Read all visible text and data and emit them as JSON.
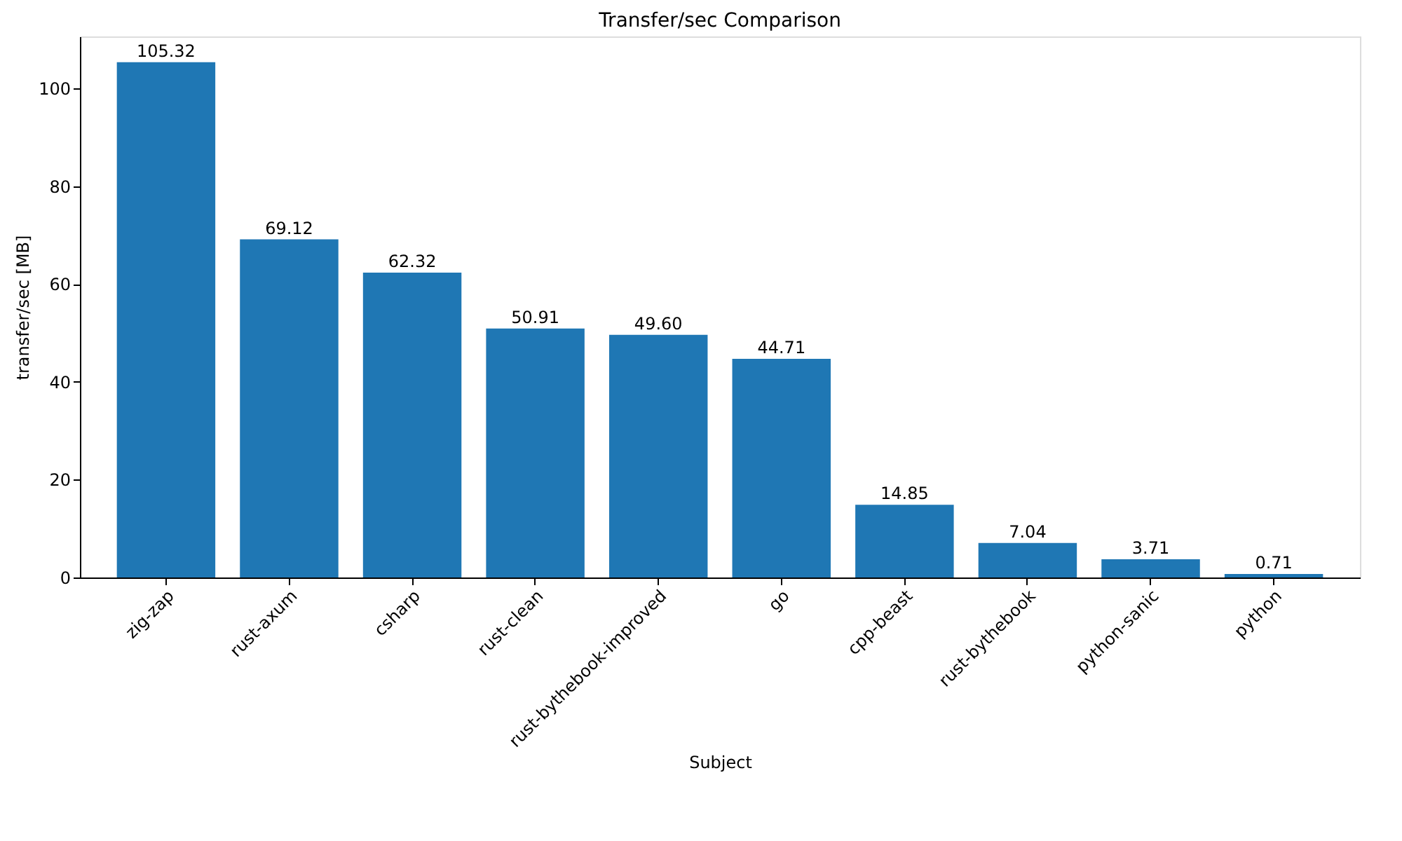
{
  "chart_data": {
    "type": "bar",
    "title": "Transfer/sec Comparison",
    "xlabel": "Subject",
    "ylabel": "transfer/sec [MB]",
    "categories": [
      "zig-zap",
      "rust-axum",
      "csharp",
      "rust-clean",
      "rust-bythebook-improved",
      "go",
      "cpp-beast",
      "rust-bythebook",
      "python-sanic",
      "python"
    ],
    "values": [
      105.32,
      69.12,
      62.32,
      50.91,
      49.6,
      44.71,
      14.85,
      7.04,
      3.71,
      0.71
    ],
    "value_labels": [
      "105.32",
      "69.12",
      "62.32",
      "50.91",
      "49.60",
      "44.71",
      "14.85",
      "7.04",
      "3.71",
      "0.71"
    ],
    "color": "#1f77b4",
    "ylim": [
      0,
      110.6
    ],
    "yticks": [
      0,
      20,
      40,
      60,
      80,
      100
    ],
    "grid": false
  }
}
